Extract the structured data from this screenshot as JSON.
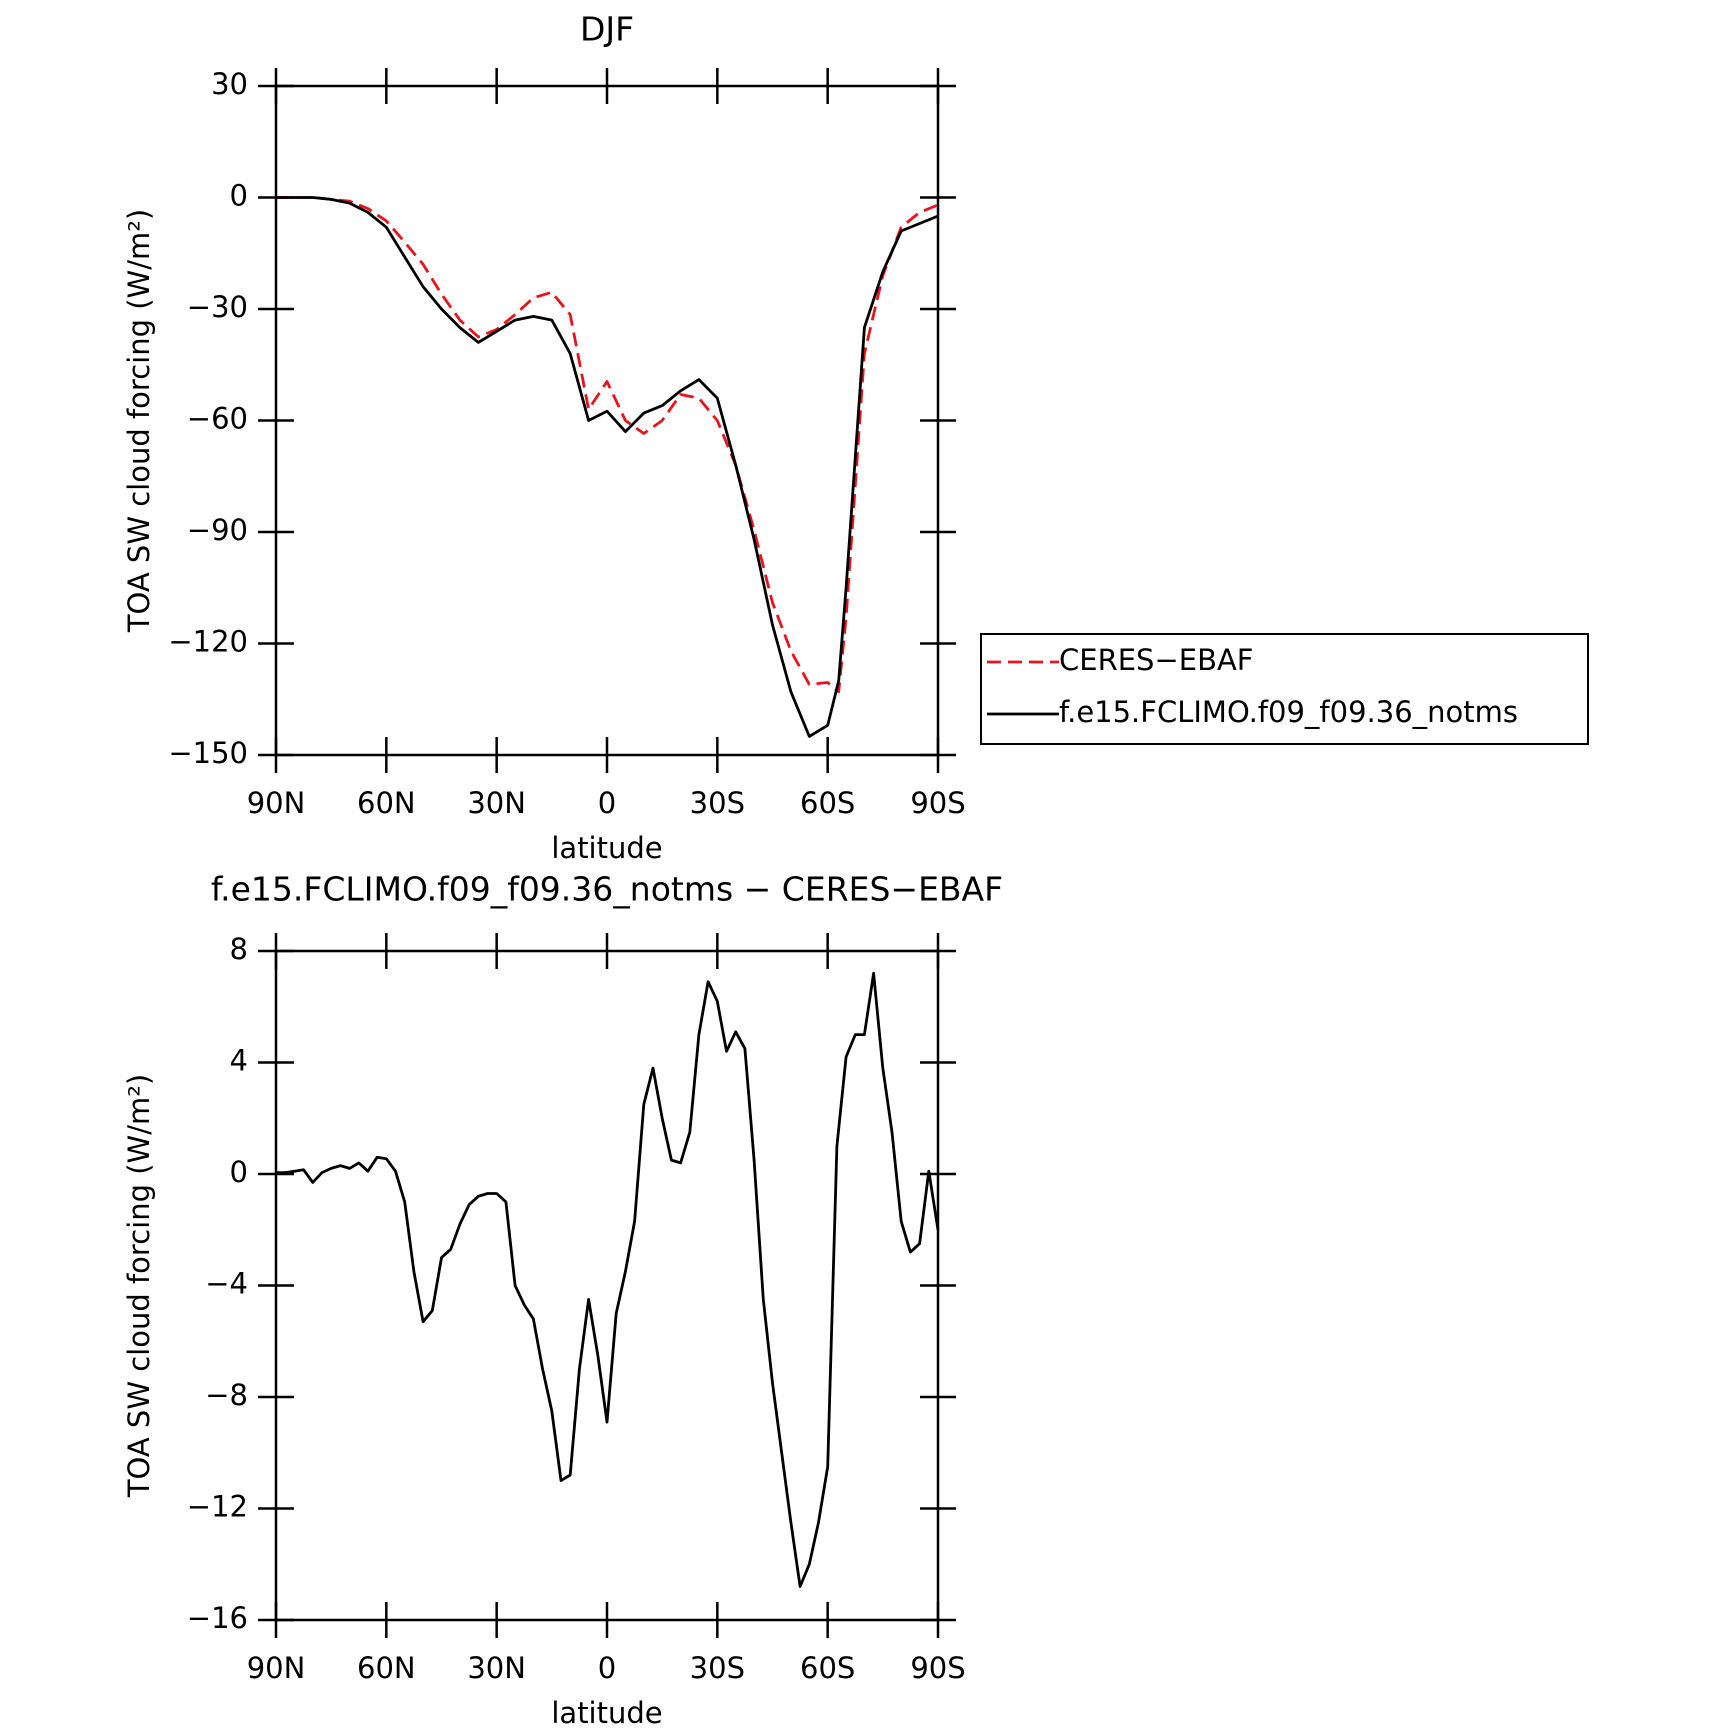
{
  "chart_data": [
    {
      "type": "line",
      "title": "DJF",
      "xlabel": "latitude",
      "ylabel": "TOA SW cloud forcing (W/m²)",
      "x": [
        90,
        85,
        80,
        75,
        70,
        65,
        60,
        55,
        50,
        45,
        40,
        35,
        30,
        25,
        20,
        15,
        10,
        5,
        0,
        -5,
        -10,
        -15,
        -20,
        -25,
        -30,
        -35,
        -40,
        -45,
        -50,
        -55,
        -60,
        -63,
        -65,
        -70,
        -75,
        -80,
        -85,
        -90
      ],
      "series": [
        {
          "name": "CERES−EBAF",
          "color": "#e8141b",
          "style": "dashed",
          "values": [
            0,
            0,
            0,
            -0.5,
            -1,
            -3,
            -6.3,
            -12,
            -18,
            -26,
            -33,
            -37.5,
            -35.5,
            -31.5,
            -27,
            -25.5,
            -31.5,
            -57,
            -49.5,
            -60,
            -63.5,
            -60,
            -53,
            -54,
            -60,
            -72,
            -89.5,
            -109,
            -122,
            -131,
            -130.5,
            -133,
            -113,
            -42,
            -21,
            -8,
            -4,
            -2
          ]
        },
        {
          "name": "f.e15.FCLIMO.f09_f09.36_notms",
          "color": "#000000",
          "style": "solid",
          "values": [
            0,
            0,
            0,
            -0.5,
            -1.5,
            -4,
            -8,
            -16,
            -24,
            -30,
            -35,
            -39,
            -36,
            -33,
            -32,
            -33,
            -42,
            -60,
            -57.5,
            -63,
            -58,
            -56,
            -52,
            -49,
            -54,
            -72,
            -92,
            -115,
            -133,
            -145,
            -142,
            -130,
            -105,
            -35,
            -20,
            -9,
            -7,
            -5
          ]
        }
      ],
      "xlim": [
        90,
        -90
      ],
      "xticks": [
        {
          "value": 90,
          "label": "90N"
        },
        {
          "value": 60,
          "label": "60N"
        },
        {
          "value": 30,
          "label": "30N"
        },
        0,
        {
          "value": -30,
          "label": "30S"
        },
        {
          "value": -60,
          "label": "60S"
        },
        {
          "value": -90,
          "label": "90S"
        }
      ],
      "ylim": [
        -150,
        30
      ],
      "yticks": [
        {
          "value": -150,
          "label": "−150"
        },
        {
          "value": -120,
          "label": "−120"
        },
        {
          "value": -90,
          "label": "−90"
        },
        {
          "value": -60,
          "label": "−60"
        },
        {
          "value": -30,
          "label": "−30"
        },
        0,
        30
      ],
      "legend": "right"
    },
    {
      "type": "line",
      "title": "f.e15.FCLIMO.f09_f09.36_notms − CERES−EBAF",
      "xlabel": "latitude",
      "ylabel": "TOA SW cloud forcing (W/m²)",
      "x": [
        90,
        87.5,
        85,
        82.5,
        80,
        77.5,
        75,
        72.5,
        70,
        67.5,
        65,
        62.5,
        60,
        57.5,
        55,
        52.5,
        50,
        47.5,
        45,
        42.5,
        40,
        37.5,
        35,
        32.5,
        30,
        27.5,
        25,
        22.5,
        20,
        17.5,
        15,
        12.5,
        10,
        7.5,
        5,
        2.5,
        0,
        -2.5,
        -5,
        -7.5,
        -10,
        -12.5,
        -15,
        -17.5,
        -20,
        -22.5,
        -25,
        -27.5,
        -30,
        -32.5,
        -35,
        -37.5,
        -40,
        -42.5,
        -45,
        -47.5,
        -50,
        -52.5,
        -55,
        -57.5,
        -60,
        -62.5,
        -65,
        -67.5,
        -70,
        -72.5,
        -75,
        -77.5,
        -80,
        -82.5,
        -85,
        -87.5,
        -90
      ],
      "values": [
        0.05,
        0.05,
        0.1,
        0.15,
        -0.3,
        0.05,
        0.2,
        0.3,
        0.2,
        0.4,
        0.1,
        0.6,
        0.55,
        0.1,
        -1.0,
        -3.5,
        -5.3,
        -4.9,
        -3.0,
        -2.7,
        -1.8,
        -1.1,
        -0.8,
        -0.7,
        -0.7,
        -1.0,
        -4.0,
        -4.7,
        -5.2,
        -7.0,
        -8.5,
        -11.0,
        -10.8,
        -7.0,
        -4.5,
        -6.5,
        -8.9,
        -5.0,
        -3.5,
        -1.7,
        2.5,
        3.8,
        2.0,
        0.5,
        0.4,
        1.5,
        5.0,
        6.9,
        6.2,
        4.4,
        5.1,
        4.5,
        0.5,
        -4.5,
        -7.5,
        -10.0,
        -12.5,
        -14.8,
        -14.0,
        -12.5,
        -10.5,
        1.0,
        4.2,
        5.0,
        5.0,
        7.2,
        3.8,
        1.5,
        -1.7,
        -2.8,
        -2.5,
        0.1,
        -2.0
      ],
      "color": "#000000",
      "xlim": [
        90,
        -90
      ],
      "xticks": [
        {
          "value": 90,
          "label": "90N"
        },
        {
          "value": 60,
          "label": "60N"
        },
        {
          "value": 30,
          "label": "30N"
        },
        0,
        {
          "value": -30,
          "label": "30S"
        },
        {
          "value": -60,
          "label": "60S"
        },
        {
          "value": -90,
          "label": "90S"
        }
      ],
      "ylim": [
        -16,
        8
      ],
      "yticks": [
        {
          "value": -16,
          "label": "−16"
        },
        {
          "value": -12,
          "label": "−12"
        },
        {
          "value": -8,
          "label": "−8"
        },
        {
          "value": -4,
          "label": "−4"
        },
        0,
        4,
        8
      ]
    }
  ]
}
